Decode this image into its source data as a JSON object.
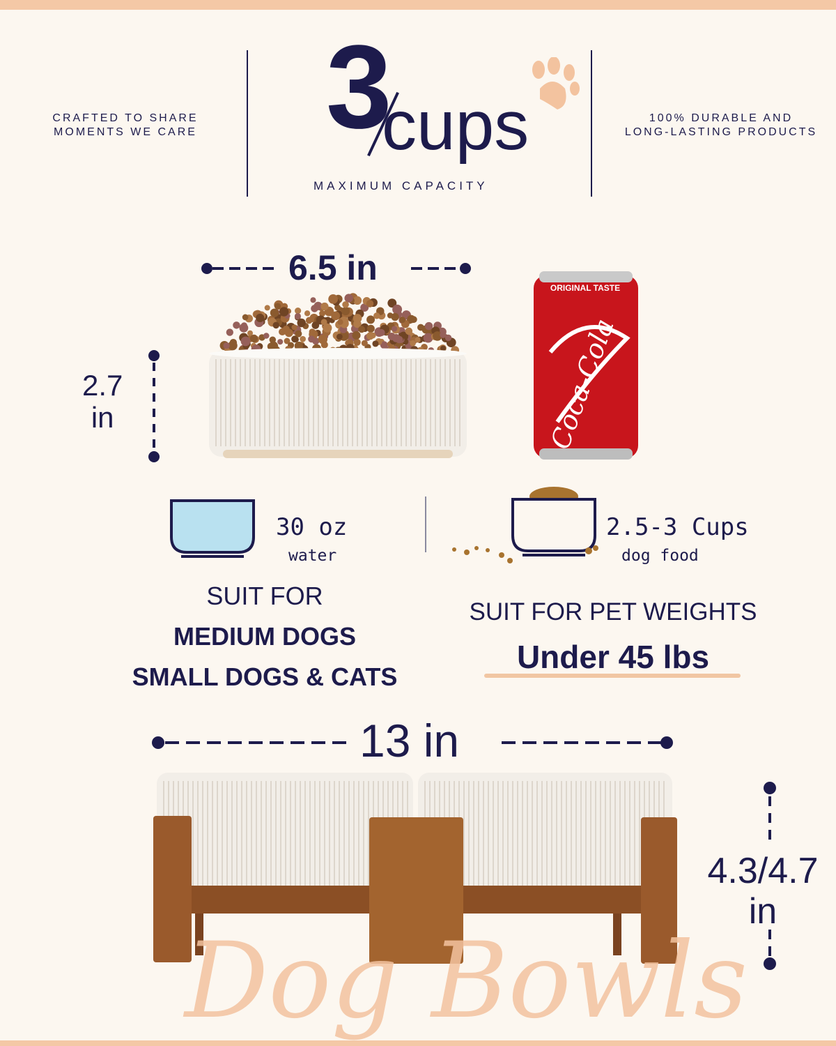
{
  "header": {
    "left_tagline": [
      "CRAFTED TO SHARE",
      "MOMENTS WE CARE"
    ],
    "capacity_number": "3",
    "capacity_unit": "cups",
    "capacity_label": "MAXIMUM CAPACITY",
    "right_tagline": [
      "100% DURABLE AND",
      "LONG-LASTING PRODUCTS"
    ],
    "paw_icon": "paw-icon"
  },
  "single_bowl": {
    "width": "6.5 in",
    "height": [
      "2.7",
      "in"
    ]
  },
  "can": {
    "label": "ORIGINAL TASTE",
    "brand": "Coca-Cola"
  },
  "capacity": {
    "water_amount": "30 oz",
    "water_label": "water",
    "food_amount": "2.5-3 Cups",
    "food_label": "dog food"
  },
  "suitability": {
    "left": [
      "SUIT FOR",
      "MEDIUM DOGS",
      "SMALL DOGS & CATS"
    ],
    "right_title": "SUIT FOR PET WEIGHTS",
    "right_value": "Under 45 lbs"
  },
  "stand": {
    "width": "13 in",
    "height": [
      "4.3/4.7",
      "in"
    ]
  },
  "script_title": "Dog Bowls",
  "colors": {
    "navy": "#1d1b4c",
    "peach": "#f4c8a6",
    "background": "#fcf7f0",
    "wood": "#9a5a2c"
  }
}
